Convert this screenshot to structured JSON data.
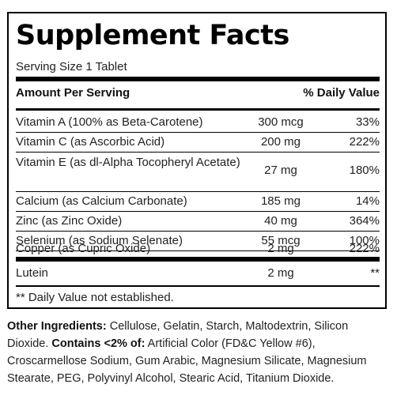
{
  "title": "Supplement Facts",
  "serving_size": "Serving Size 1 Tablet",
  "header": {
    "amount": "Amount Per Serving",
    "daily_value": "% Daily Value"
  },
  "nutrients": [
    {
      "name": "Vitamin A (100% as Beta-Carotene)",
      "amount": "300 mcg",
      "dv": "33%"
    },
    {
      "name": "Vitamin C (as Ascorbic Acid)",
      "amount": "200 mg",
      "dv": "222%"
    },
    {
      "name": "Vitamin E (as dl-Alpha Tocopheryl Acetate)",
      "amount": "27 mg",
      "dv": "180%"
    },
    {
      "name": "Calcium (as Calcium Carbonate)",
      "amount": "185 mg",
      "dv": "14%"
    },
    {
      "name": "Zinc (as Zinc Oxide)",
      "amount": "40 mg",
      "dv": "364%"
    },
    {
      "name": "Selenium (as Sodium Selenate)",
      "amount": "55 mcg",
      "dv": "100%"
    },
    {
      "name": "Copper (as Cupric Oxide)",
      "amount": "2 mg",
      "dv": "222%"
    }
  ],
  "other_nutrients": [
    {
      "name": "Lutein",
      "amount": "2 mg",
      "dv": "**"
    }
  ],
  "footnote": "** Daily Value not established.",
  "other_ingredients": {
    "label": "Other Ingredients:",
    "text": " Cellulose, Gelatin, Starch, Maltodextrin, Silicon Dioxide. ",
    "contains_label": "Contains <2% of:",
    "contains_text": " Artificial Color (FD&C Yellow #6), Croscarmellose Sodium, Gum Arabic, Magnesium Silicate, Magnesium Stearate, PEG, Polyvinyl Alcohol, Stearic Acid, Titanium Dioxide."
  }
}
